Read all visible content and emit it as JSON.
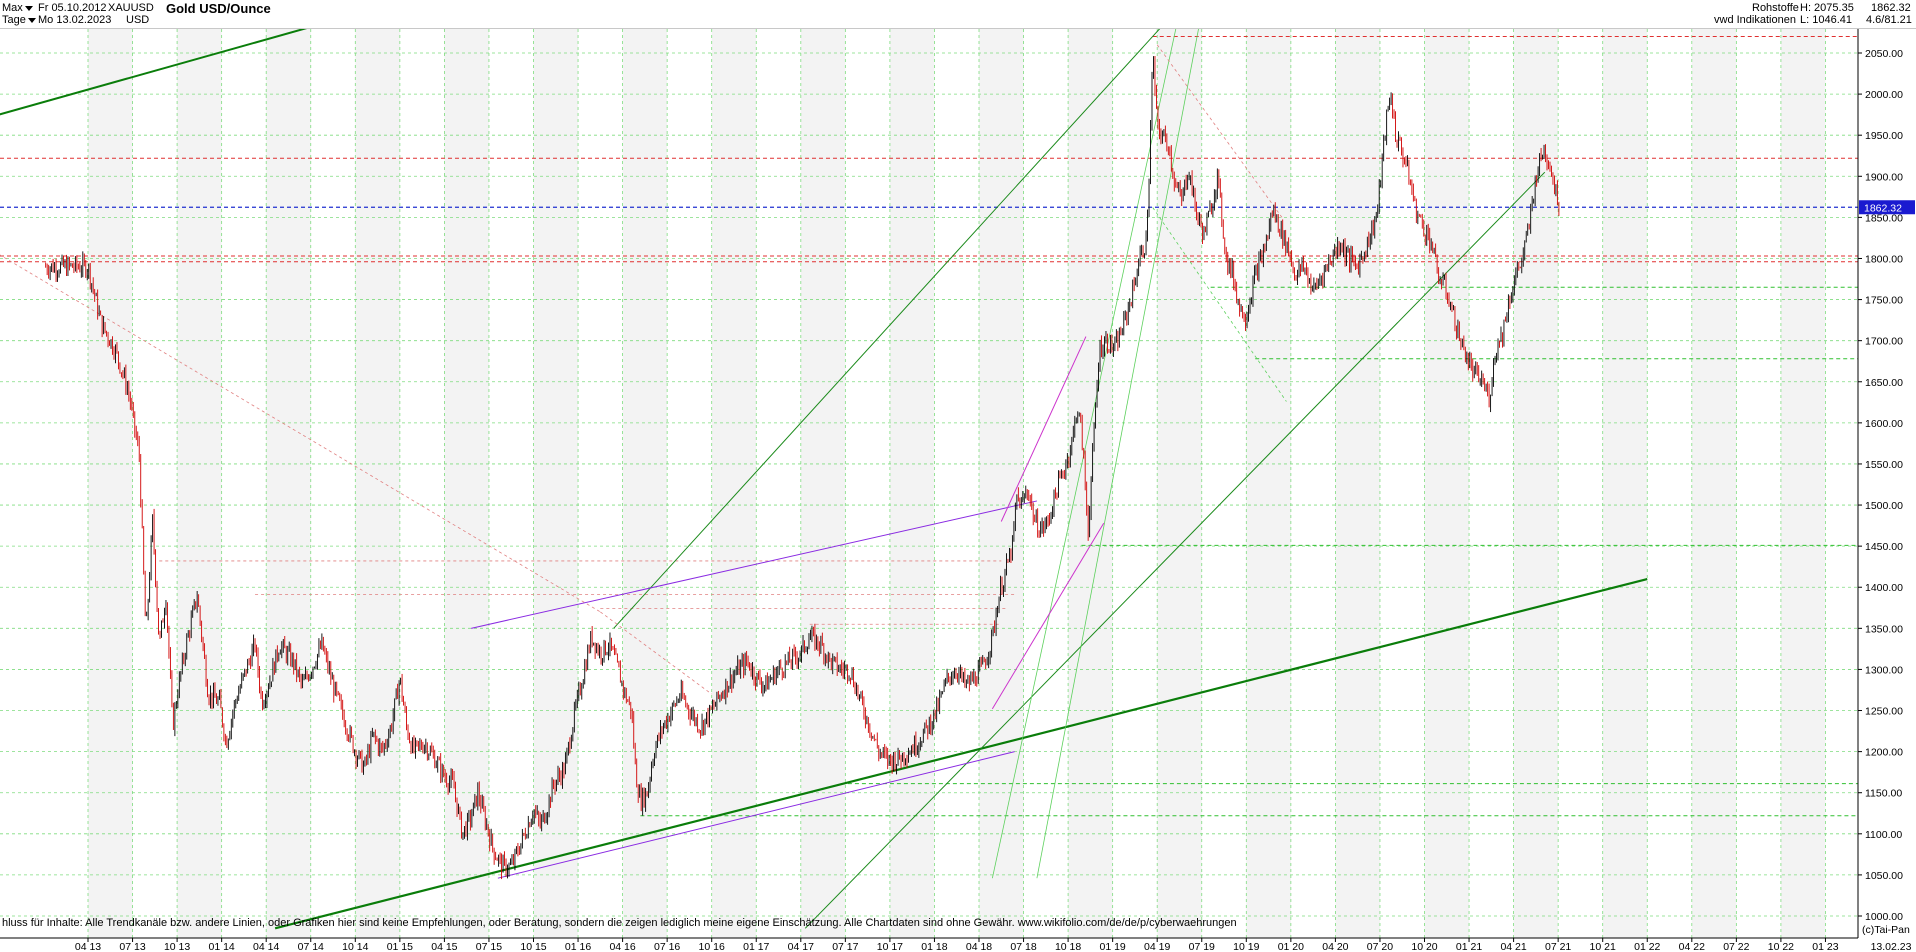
{
  "header": {
    "range_select": "Max",
    "interval_select": "Tage",
    "date_from": "Fr 05.10.2012",
    "date_to": "Mo 13.02.2023",
    "symbol": "XAUUSD",
    "currency": "USD",
    "title": "Gold USD/Ounce",
    "category": "Rohstoffe",
    "source": "vwd Indikationen",
    "high": "H: 2075.35",
    "low": "L: 1046.41",
    "last": "1862.32",
    "ratio": "4.6/81.21"
  },
  "chart_data": {
    "type": "candlestick",
    "title": "Gold USD/Ounce",
    "xlabel": "",
    "ylabel": "",
    "ylim": [
      1000,
      2100
    ],
    "y_ticks": [
      1000,
      1050,
      1100,
      1150,
      1200,
      1250,
      1300,
      1350,
      1400,
      1450,
      1500,
      1550,
      1600,
      1650,
      1700,
      1750,
      1800,
      1850,
      1900,
      1950,
      2000,
      2050
    ],
    "x_ticks": [
      "04 13",
      "07 13",
      "10 13",
      "01 14",
      "04 14",
      "07 14",
      "10 14",
      "01 15",
      "04 15",
      "07 15",
      "10 15",
      "01 16",
      "04 16",
      "07 16",
      "10 16",
      "01 17",
      "04 17",
      "07 17",
      "10 17",
      "01 18",
      "04 18",
      "07 18",
      "10 18",
      "01 19",
      "04 19",
      "07 19",
      "10 19",
      "01 20",
      "04 20",
      "07 20",
      "10 20",
      "01 21",
      "04 21",
      "07 21",
      "10 21",
      "01 22",
      "04 22",
      "07 22",
      "10 22",
      "01 23"
    ],
    "last_date": "13.02.23",
    "price_path": [
      [
        0.0,
        1790
      ],
      [
        0.3,
        1720
      ],
      [
        0.6,
        1690
      ],
      [
        0.9,
        1640
      ],
      [
        1.15,
        1560
      ],
      [
        1.3,
        1340
      ],
      [
        1.45,
        1480
      ],
      [
        1.6,
        1330
      ],
      [
        1.75,
        1390
      ],
      [
        1.9,
        1230
      ],
      [
        2.0,
        1270
      ],
      [
        2.2,
        1330
      ],
      [
        2.45,
        1390
      ],
      [
        2.7,
        1270
      ],
      [
        2.95,
        1260
      ],
      [
        3.1,
        1210
      ],
      [
        3.3,
        1260
      ],
      [
        3.55,
        1300
      ],
      [
        3.75,
        1330
      ],
      [
        3.9,
        1260
      ],
      [
        4.1,
        1290
      ],
      [
        4.3,
        1330
      ],
      [
        4.6,
        1310
      ],
      [
        4.8,
        1280
      ],
      [
        5.0,
        1300
      ],
      [
        5.25,
        1330
      ],
      [
        5.5,
        1280
      ],
      [
        5.75,
        1240
      ],
      [
        6.0,
        1200
      ],
      [
        6.2,
        1180
      ],
      [
        6.4,
        1220
      ],
      [
        6.6,
        1200
      ],
      [
        6.8,
        1230
      ],
      [
        7.0,
        1290
      ],
      [
        7.15,
        1230
      ],
      [
        7.3,
        1200
      ],
      [
        7.55,
        1210
      ],
      [
        7.8,
        1190
      ],
      [
        8.0,
        1170
      ],
      [
        8.2,
        1160
      ],
      [
        8.4,
        1100
      ],
      [
        8.6,
        1120
      ],
      [
        8.75,
        1150
      ],
      [
        8.9,
        1120
      ],
      [
        9.1,
        1080
      ],
      [
        9.3,
        1060
      ],
      [
        9.5,
        1060
      ],
      [
        9.65,
        1080
      ],
      [
        9.8,
        1100
      ],
      [
        10.0,
        1130
      ],
      [
        10.15,
        1110
      ],
      [
        10.3,
        1130
      ],
      [
        10.45,
        1160
      ],
      [
        10.7,
        1180
      ],
      [
        10.9,
        1240
      ],
      [
        11.1,
        1290
      ],
      [
        11.3,
        1340
      ],
      [
        11.5,
        1320
      ],
      [
        11.7,
        1330
      ],
      [
        11.9,
        1300
      ],
      [
        12.05,
        1270
      ],
      [
        12.2,
        1250
      ],
      [
        12.3,
        1170
      ],
      [
        12.4,
        1140
      ],
      [
        12.55,
        1150
      ],
      [
        12.7,
        1200
      ],
      [
        12.9,
        1230
      ],
      [
        13.1,
        1250
      ],
      [
        13.3,
        1270
      ],
      [
        13.5,
        1250
      ],
      [
        13.75,
        1230
      ],
      [
        14.0,
        1250
      ],
      [
        14.2,
        1270
      ],
      [
        14.45,
        1290
      ],
      [
        14.6,
        1300
      ],
      [
        14.8,
        1310
      ],
      [
        15.0,
        1290
      ],
      [
        15.2,
        1280
      ],
      [
        15.5,
        1300
      ],
      [
        15.75,
        1310
      ],
      [
        16.0,
        1320
      ],
      [
        16.2,
        1340
      ],
      [
        16.45,
        1330
      ],
      [
        16.65,
        1310
      ],
      [
        16.9,
        1300
      ],
      [
        17.1,
        1300
      ],
      [
        17.35,
        1260
      ],
      [
        17.55,
        1230
      ],
      [
        17.75,
        1200
      ],
      [
        17.95,
        1190
      ],
      [
        18.15,
        1190
      ],
      [
        18.4,
        1200
      ],
      [
        18.6,
        1210
      ],
      [
        18.85,
        1230
      ],
      [
        19.05,
        1250
      ],
      [
        19.3,
        1290
      ],
      [
        19.5,
        1300
      ],
      [
        19.7,
        1280
      ],
      [
        19.9,
        1290
      ],
      [
        20.05,
        1300
      ],
      [
        20.2,
        1320
      ],
      [
        20.3,
        1340
      ],
      [
        20.45,
        1390
      ],
      [
        20.6,
        1420
      ],
      [
        20.75,
        1450
      ],
      [
        20.85,
        1510
      ],
      [
        20.95,
        1500
      ],
      [
        21.1,
        1520
      ],
      [
        21.25,
        1480
      ],
      [
        21.4,
        1470
      ],
      [
        21.55,
        1480
      ],
      [
        21.75,
        1520
      ],
      [
        21.95,
        1550
      ],
      [
        22.1,
        1580
      ],
      [
        22.2,
        1620
      ],
      [
        22.3,
        1590
      ],
      [
        22.45,
        1470
      ],
      [
        22.55,
        1560
      ],
      [
        22.7,
        1690
      ],
      [
        22.85,
        1700
      ],
      [
        23.05,
        1690
      ],
      [
        23.25,
        1720
      ],
      [
        23.45,
        1760
      ],
      [
        23.6,
        1800
      ],
      [
        23.75,
        1820
      ],
      [
        23.82,
        1900
      ],
      [
        23.9,
        2050
      ],
      [
        24.0,
        1960
      ],
      [
        24.1,
        1950
      ],
      [
        24.25,
        1940
      ],
      [
        24.4,
        1890
      ],
      [
        24.55,
        1870
      ],
      [
        24.7,
        1910
      ],
      [
        24.9,
        1850
      ],
      [
        25.05,
        1830
      ],
      [
        25.2,
        1860
      ],
      [
        25.35,
        1900
      ],
      [
        25.55,
        1800
      ],
      [
        25.7,
        1780
      ],
      [
        25.85,
        1740
      ],
      [
        26.0,
        1730
      ],
      [
        26.2,
        1780
      ],
      [
        26.4,
        1810
      ],
      [
        26.6,
        1860
      ],
      [
        26.8,
        1830
      ],
      [
        26.95,
        1810
      ],
      [
        27.1,
        1780
      ],
      [
        27.3,
        1790
      ],
      [
        27.5,
        1760
      ],
      [
        27.7,
        1780
      ],
      [
        27.9,
        1800
      ],
      [
        28.1,
        1820
      ],
      [
        28.3,
        1800
      ],
      [
        28.5,
        1790
      ],
      [
        28.65,
        1810
      ],
      [
        28.8,
        1830
      ],
      [
        28.95,
        1860
      ],
      [
        29.05,
        1920
      ],
      [
        29.15,
        1970
      ],
      [
        29.25,
        2000
      ],
      [
        29.35,
        1950
      ],
      [
        29.5,
        1930
      ],
      [
        29.65,
        1900
      ],
      [
        29.8,
        1860
      ],
      [
        29.95,
        1840
      ],
      [
        30.15,
        1820
      ],
      [
        30.3,
        1780
      ],
      [
        30.5,
        1760
      ],
      [
        30.65,
        1730
      ],
      [
        30.8,
        1700
      ],
      [
        30.95,
        1680
      ],
      [
        31.1,
        1660
      ],
      [
        31.3,
        1650
      ],
      [
        31.45,
        1630
      ],
      [
        31.6,
        1690
      ],
      [
        31.75,
        1710
      ],
      [
        31.9,
        1750
      ],
      [
        32.05,
        1780
      ],
      [
        32.2,
        1800
      ],
      [
        32.35,
        1840
      ],
      [
        32.5,
        1900
      ],
      [
        32.65,
        1930
      ],
      [
        32.8,
        1920
      ],
      [
        32.95,
        1880
      ],
      [
        33.05,
        1862
      ]
    ]
  },
  "footer": {
    "disclaimer": "hluss für Inhalte: Alle Trendkanäle bzw. andere Linien, oder Grafiken hier sind keine Empfehlungen, oder Beratung, sondern die zeigen lediglich meine eigene Einschätzung. Alle Chartdaten sind ohne Gewähr.  www.wikifolio.com/de/de/p/cyberwaehrungen",
    "copyright": "(c)Tai-Pan"
  }
}
